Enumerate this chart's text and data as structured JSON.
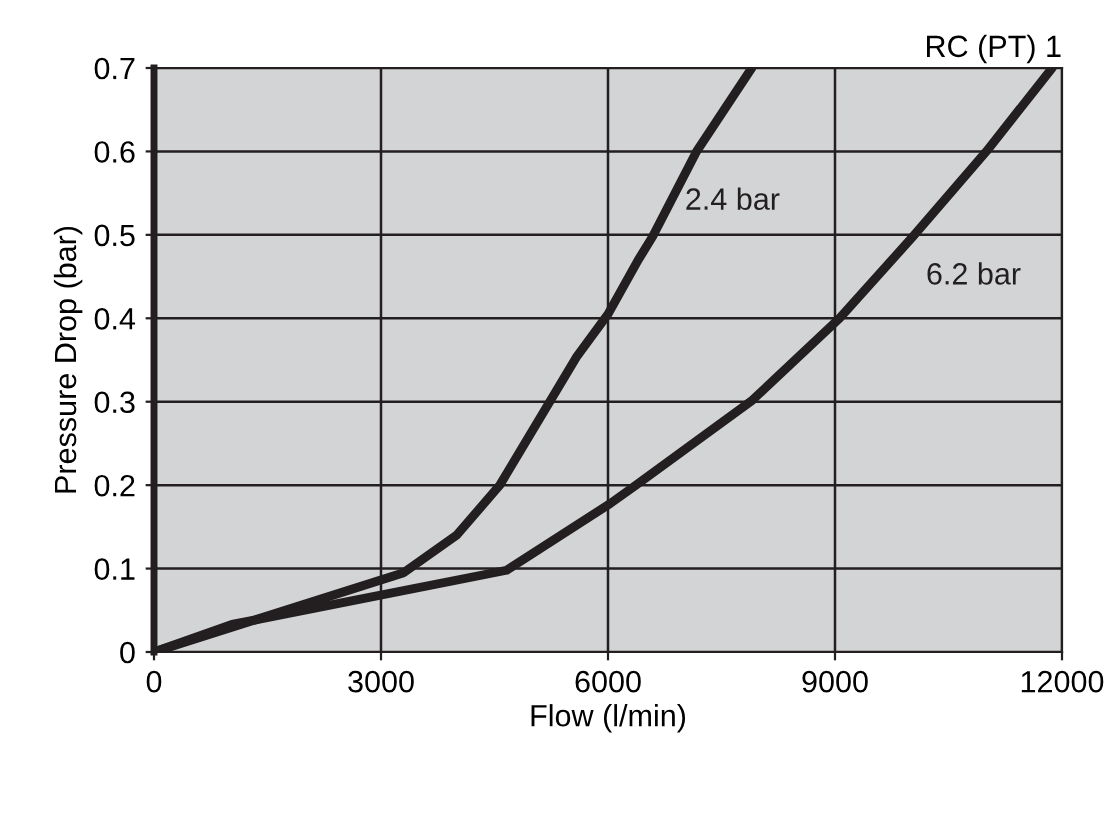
{
  "chart_data": {
    "type": "line",
    "title": "RC (PT) 1",
    "xlabel": "Flow (l/min)",
    "ylabel": "Pressure Drop (bar)",
    "xlim": [
      0,
      12000
    ],
    "xticks": [
      0,
      3000,
      6000,
      9000,
      12000
    ],
    "ylim": [
      0,
      0.7
    ],
    "yticks": [
      0,
      0.1,
      0.2,
      0.3,
      0.4,
      0.5,
      0.6,
      0.7
    ],
    "grid": true,
    "series": [
      {
        "color": "#231f20",
        "x": [
          0,
          3300,
          4000,
          4570,
          5230,
          5580,
          6000,
          6400,
          6590,
          7170,
          7900
        ],
        "values": [
          0,
          0.095,
          0.14,
          0.2,
          0.3,
          0.353,
          0.405,
          0.47,
          0.498,
          0.6,
          0.7
        ]
      },
      {
        "color": "#231f20",
        "x": [
          0,
          1030,
          4660,
          6030,
          6370,
          7910,
          9060,
          10030,
          11000,
          11870
        ],
        "values": [
          0,
          0.033,
          0.098,
          0.178,
          0.2,
          0.302,
          0.4,
          0.498,
          0.6,
          0.7
        ]
      }
    ],
    "annotations": [
      "2.4 bar",
      "6.2 bar"
    ]
  }
}
